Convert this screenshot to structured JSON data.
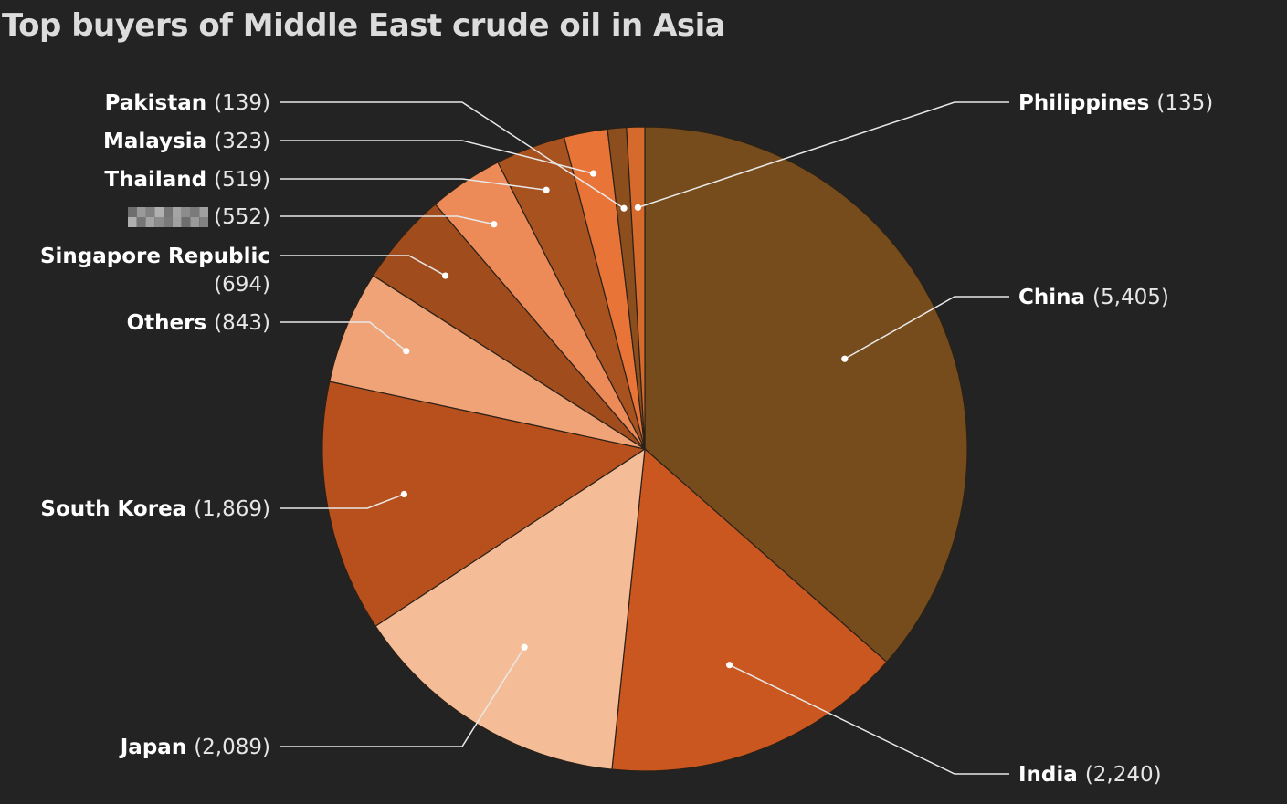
{
  "chart_data": {
    "type": "pie",
    "title": "Top buyers of Middle East crude oil in Asia",
    "slices": [
      {
        "name": "China",
        "value": 5405,
        "value_label": "(5,405)",
        "color": "#774c1c"
      },
      {
        "name": "India",
        "value": 2240,
        "value_label": "(2,240)",
        "color": "#c9571f"
      },
      {
        "name": "Japan",
        "value": 2089,
        "value_label": "(2,089)",
        "color": "#f5bd97"
      },
      {
        "name": "South Korea",
        "value": 1869,
        "value_label": "(1,869)",
        "color": "#b8501d"
      },
      {
        "name": "Others",
        "value": 843,
        "value_label": "(843)",
        "color": "#f0a376"
      },
      {
        "name": "Singapore Republic",
        "value": 694,
        "value_label": "(694)",
        "color": "#a04c1c"
      },
      {
        "name": "",
        "value": 552,
        "value_label": "(552)",
        "color": "#ec8a58",
        "name_obscured": true
      },
      {
        "name": "Thailand",
        "value": 519,
        "value_label": "(519)",
        "color": "#a8521f"
      },
      {
        "name": "Malaysia",
        "value": 323,
        "value_label": "(323)",
        "color": "#e87437"
      },
      {
        "name": "Pakistan",
        "value": 139,
        "value_label": "(139)",
        "color": "#8c4e1c"
      },
      {
        "name": "Philippines",
        "value": 135,
        "value_label": "(135)",
        "color": "#d66a2c"
      }
    ],
    "legend": "none",
    "labels": "outside with leader lines"
  }
}
